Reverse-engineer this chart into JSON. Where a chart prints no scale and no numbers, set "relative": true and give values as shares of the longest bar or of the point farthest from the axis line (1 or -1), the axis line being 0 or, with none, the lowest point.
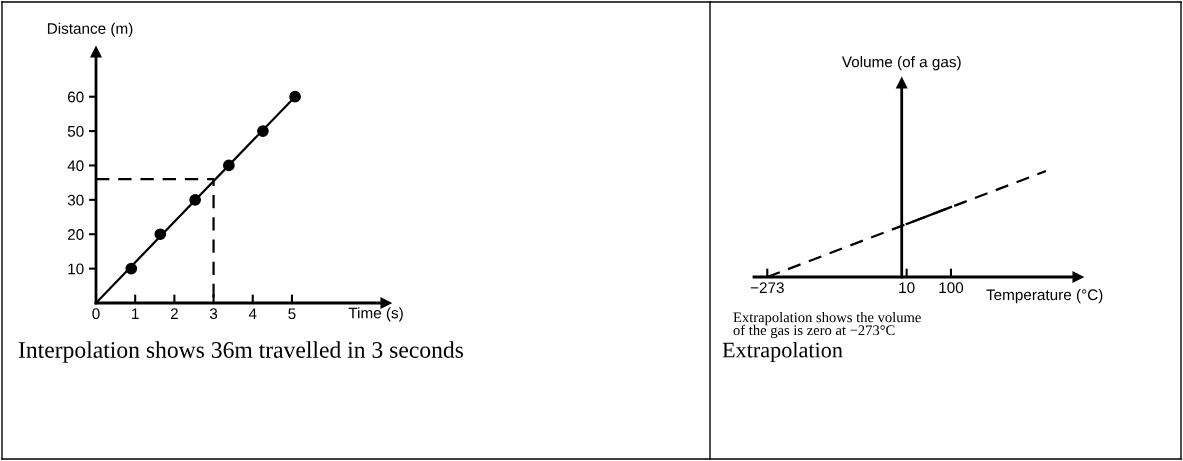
{
  "chart_data": [
    {
      "type": "line",
      "xlabel": "Time (s)",
      "ylabel": "Distance (m)",
      "xlim": [
        0,
        7.4
      ],
      "ylim": [
        0,
        73
      ],
      "xticks": [
        0,
        1,
        2,
        3,
        4,
        5
      ],
      "yticks": [
        10,
        20,
        30,
        40,
        50,
        60
      ],
      "series": [
        {
          "x": [
            0,
            5.08
          ],
          "values": [
            0,
            60
          ],
          "color": "#000000",
          "line_style": "solid",
          "marker": "none"
        },
        {
          "type": "scatter",
          "x": [
            0.9,
            1.64,
            2.53,
            3.39,
            4.26,
            5.08
          ],
          "values": [
            10,
            20,
            30,
            40,
            50,
            60
          ],
          "color": "#000000",
          "marker": "circle"
        },
        {
          "x": [
            0,
            3,
            3
          ],
          "values": [
            36,
            36,
            0
          ],
          "color": "#000000",
          "line_style": "dashed",
          "marker": "none"
        }
      ],
      "annotations": [
        "Interpolation shows 36m travelled in 3 seconds"
      ]
    },
    {
      "type": "line",
      "relative": true,
      "xlabel": "Temperature (°C)",
      "ylabel": "Volume (of a gas)",
      "xlim": [
        -300,
        358
      ],
      "xticks": [
        {
          "value": -273,
          "label": "−273"
        },
        10,
        100
      ],
      "tick_labels": "x",
      "series": [
        {
          "x": [
            -273,
            293
          ],
          "values": [
            0,
            1
          ],
          "color": "#000000",
          "line_style": "dashed",
          "marker": "none"
        },
        {
          "x": [
            10,
            100
          ],
          "values": [
            0.5,
            0.66
          ],
          "color": "#000000",
          "line_style": "solid",
          "marker": "none"
        }
      ],
      "annotations": [
        "Extrapolation shows the volume\nof the gas is zero at −273°C",
        "Extrapolation"
      ]
    }
  ]
}
